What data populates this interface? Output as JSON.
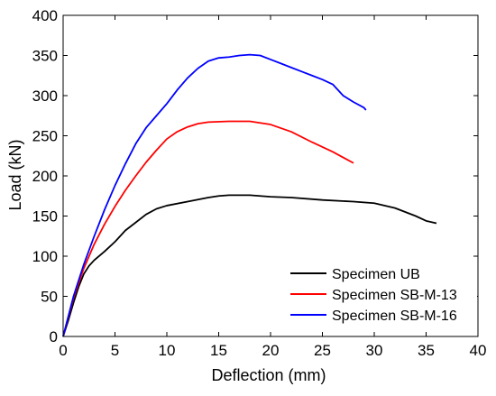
{
  "chart_data": {
    "type": "line",
    "title": "",
    "xlabel": "Deflection (mm)",
    "ylabel": "Load (kN)",
    "xlim": [
      0,
      40
    ],
    "ylim": [
      0,
      400
    ],
    "xticks": [
      0,
      5,
      10,
      15,
      20,
      25,
      30,
      35,
      40
    ],
    "yticks": [
      0,
      50,
      100,
      150,
      200,
      250,
      300,
      350,
      400
    ],
    "grid": false,
    "legend_position": "bottom-right",
    "series": [
      {
        "name": "Specimen UB",
        "color": "#000000",
        "points": [
          [
            0,
            0
          ],
          [
            0.5,
            20
          ],
          [
            1,
            42
          ],
          [
            1.5,
            62
          ],
          [
            2,
            78
          ],
          [
            2.5,
            88
          ],
          [
            3,
            95
          ],
          [
            4,
            106
          ],
          [
            5,
            118
          ],
          [
            6,
            132
          ],
          [
            7,
            142
          ],
          [
            8,
            152
          ],
          [
            9,
            159
          ],
          [
            10,
            163
          ],
          [
            12,
            168
          ],
          [
            14,
            173
          ],
          [
            15,
            175
          ],
          [
            16,
            176
          ],
          [
            18,
            176
          ],
          [
            20,
            174
          ],
          [
            22,
            173
          ],
          [
            25,
            170
          ],
          [
            28,
            168
          ],
          [
            30,
            166
          ],
          [
            32,
            160
          ],
          [
            34,
            150
          ],
          [
            35,
            144
          ],
          [
            36,
            141
          ]
        ]
      },
      {
        "name": "Specimen SB-M-13",
        "color": "#ff0000",
        "points": [
          [
            0,
            0
          ],
          [
            1,
            48
          ],
          [
            2,
            85
          ],
          [
            3,
            115
          ],
          [
            4,
            140
          ],
          [
            5,
            162
          ],
          [
            6,
            182
          ],
          [
            7,
            200
          ],
          [
            8,
            217
          ],
          [
            9,
            232
          ],
          [
            10,
            246
          ],
          [
            11,
            255
          ],
          [
            12,
            261
          ],
          [
            13,
            265
          ],
          [
            14,
            267
          ],
          [
            16,
            268
          ],
          [
            18,
            268
          ],
          [
            20,
            264
          ],
          [
            22,
            255
          ],
          [
            24,
            242
          ],
          [
            26,
            230
          ],
          [
            27,
            223
          ],
          [
            28,
            216
          ]
        ]
      },
      {
        "name": "Specimen SB-M-16",
        "color": "#0000ff",
        "points": [
          [
            0,
            0
          ],
          [
            1,
            50
          ],
          [
            2,
            90
          ],
          [
            3,
            125
          ],
          [
            4,
            158
          ],
          [
            5,
            188
          ],
          [
            6,
            215
          ],
          [
            7,
            240
          ],
          [
            8,
            260
          ],
          [
            9,
            275
          ],
          [
            10,
            290
          ],
          [
            11,
            307
          ],
          [
            12,
            322
          ],
          [
            13,
            334
          ],
          [
            14,
            343
          ],
          [
            15,
            347
          ],
          [
            16,
            348
          ],
          [
            17,
            350
          ],
          [
            18,
            351
          ],
          [
            19,
            350
          ],
          [
            20,
            345
          ],
          [
            21,
            340
          ],
          [
            22,
            335
          ],
          [
            23,
            330
          ],
          [
            24,
            325
          ],
          [
            25,
            320
          ],
          [
            26,
            314
          ],
          [
            27,
            300
          ],
          [
            28,
            292
          ],
          [
            29,
            285
          ],
          [
            29.2,
            282
          ]
        ]
      }
    ]
  }
}
